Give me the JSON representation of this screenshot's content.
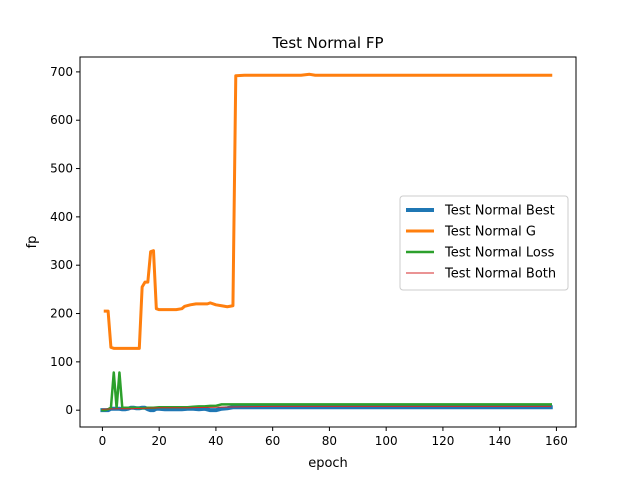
{
  "chart_data": {
    "type": "line",
    "title": "Test Normal FP",
    "xlabel": "epoch",
    "ylabel": "fp",
    "xlim": [
      -7.9,
      166.9
    ],
    "ylim": [
      -34.8,
      730.8
    ],
    "xticks": [
      0,
      20,
      40,
      60,
      80,
      100,
      120,
      140,
      160
    ],
    "yticks": [
      0,
      100,
      200,
      300,
      400,
      500,
      600,
      700
    ],
    "grid": false,
    "legend_position": "center-right",
    "series": [
      {
        "name": "Test Normal Best",
        "color": "#1f77b4",
        "width": 4,
        "points": [
          [
            0,
            0
          ],
          [
            1,
            0
          ],
          [
            2,
            0
          ],
          [
            3,
            3
          ],
          [
            4,
            3
          ],
          [
            5,
            3
          ],
          [
            6,
            3
          ],
          [
            7,
            2
          ],
          [
            8,
            2
          ],
          [
            9,
            3
          ],
          [
            10,
            5
          ],
          [
            11,
            5
          ],
          [
            12,
            4
          ],
          [
            13,
            4
          ],
          [
            14,
            5
          ],
          [
            15,
            5
          ],
          [
            16,
            2
          ],
          [
            17,
            0
          ],
          [
            18,
            0
          ],
          [
            19,
            3
          ],
          [
            20,
            3
          ],
          [
            22,
            2
          ],
          [
            24,
            2
          ],
          [
            26,
            2
          ],
          [
            28,
            2
          ],
          [
            30,
            3
          ],
          [
            32,
            3
          ],
          [
            34,
            2
          ],
          [
            36,
            3
          ],
          [
            38,
            0
          ],
          [
            40,
            0
          ],
          [
            42,
            3
          ],
          [
            44,
            4
          ],
          [
            46,
            6
          ],
          [
            50,
            6
          ],
          [
            60,
            6
          ],
          [
            70,
            6
          ],
          [
            80,
            6
          ],
          [
            100,
            6
          ],
          [
            120,
            6
          ],
          [
            140,
            6
          ],
          [
            158,
            6
          ]
        ]
      },
      {
        "name": "Test Normal G",
        "color": "#ff7f0e",
        "width": 3,
        "points": [
          [
            1,
            205
          ],
          [
            2,
            205
          ],
          [
            3,
            130
          ],
          [
            4,
            128
          ],
          [
            5,
            128
          ],
          [
            6,
            128
          ],
          [
            7,
            128
          ],
          [
            8,
            128
          ],
          [
            9,
            128
          ],
          [
            10,
            128
          ],
          [
            11,
            128
          ],
          [
            12,
            128
          ],
          [
            13,
            128
          ],
          [
            14,
            255
          ],
          [
            15,
            265
          ],
          [
            16,
            265
          ],
          [
            17,
            328
          ],
          [
            18,
            330
          ],
          [
            19,
            210
          ],
          [
            20,
            208
          ],
          [
            22,
            208
          ],
          [
            24,
            208
          ],
          [
            26,
            208
          ],
          [
            28,
            210
          ],
          [
            29,
            215
          ],
          [
            31,
            218
          ],
          [
            33,
            220
          ],
          [
            35,
            220
          ],
          [
            37,
            220
          ],
          [
            38,
            222
          ],
          [
            40,
            218
          ],
          [
            42,
            216
          ],
          [
            44,
            214
          ],
          [
            46,
            216
          ],
          [
            47,
            692
          ],
          [
            50,
            693
          ],
          [
            60,
            693
          ],
          [
            70,
            693
          ],
          [
            73,
            695
          ],
          [
            75,
            693
          ],
          [
            80,
            693
          ],
          [
            100,
            693
          ],
          [
            120,
            693
          ],
          [
            140,
            693
          ],
          [
            158,
            693
          ]
        ]
      },
      {
        "name": "Test Normal Loss",
        "color": "#2ca02c",
        "width": 2.5,
        "points": [
          [
            0,
            0
          ],
          [
            1,
            0
          ],
          [
            2,
            2
          ],
          [
            3,
            5
          ],
          [
            4,
            78
          ],
          [
            5,
            5
          ],
          [
            6,
            78
          ],
          [
            7,
            5
          ],
          [
            8,
            5
          ],
          [
            10,
            5
          ],
          [
            12,
            5
          ],
          [
            14,
            4
          ],
          [
            16,
            5
          ],
          [
            18,
            5
          ],
          [
            20,
            6
          ],
          [
            22,
            6
          ],
          [
            24,
            6
          ],
          [
            26,
            6
          ],
          [
            28,
            6
          ],
          [
            30,
            6
          ],
          [
            32,
            7
          ],
          [
            34,
            8
          ],
          [
            36,
            8
          ],
          [
            38,
            9
          ],
          [
            40,
            9
          ],
          [
            42,
            12
          ],
          [
            44,
            12
          ],
          [
            50,
            12
          ],
          [
            60,
            12
          ],
          [
            80,
            12
          ],
          [
            100,
            12
          ],
          [
            120,
            12
          ],
          [
            140,
            12
          ],
          [
            158,
            12
          ]
        ]
      },
      {
        "name": "Test Normal Both",
        "color": "#d62728",
        "width": 1,
        "points": [
          [
            0,
            2
          ],
          [
            5,
            3
          ],
          [
            10,
            3
          ],
          [
            15,
            4
          ],
          [
            20,
            5
          ],
          [
            30,
            5
          ],
          [
            40,
            6
          ],
          [
            50,
            7
          ],
          [
            60,
            8
          ],
          [
            80,
            8
          ],
          [
            100,
            8
          ],
          [
            120,
            8
          ],
          [
            140,
            8
          ],
          [
            158,
            8
          ]
        ]
      }
    ]
  }
}
